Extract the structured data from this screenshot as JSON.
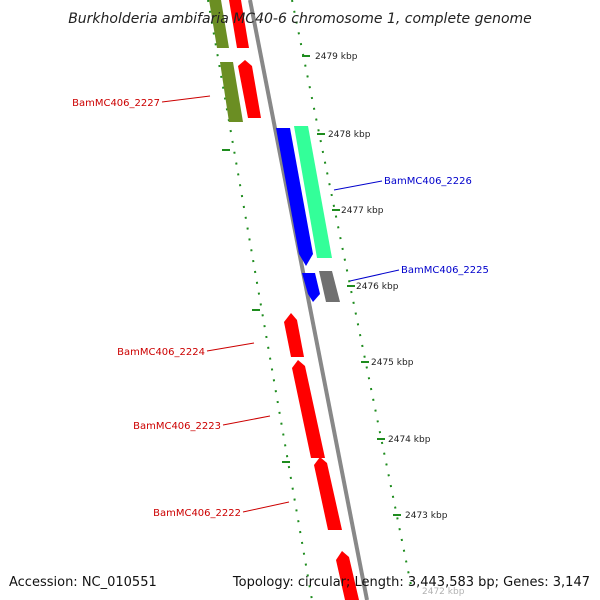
{
  "title": "Burkholderia ambifaria MC40-6 chromosome 1, complete genome",
  "footer": {
    "accession": "Accession: NC_010551",
    "summary": "Topology: circular; Length: 3,443,583 bp; Genes: 3,147"
  },
  "colors": {
    "backbone": "#888888",
    "tick": "#1e8c1e",
    "red": "#ff0000",
    "olive": "#6b8e23",
    "blue": "#0000ff",
    "aqua": "#33ff99",
    "gray": "#707070",
    "label_red": "#cc0000",
    "label_blue": "#0000cc"
  },
  "ticks": [
    {
      "label": "2479 kbp"
    },
    {
      "label": "2478 kbp"
    },
    {
      "label": "2477 kbp"
    },
    {
      "label": "2476 kbp"
    },
    {
      "label": "2475 kbp"
    },
    {
      "label": "2474 kbp"
    },
    {
      "label": "2473 kbp"
    },
    {
      "label": "2472 kbp"
    }
  ],
  "gene_labels": [
    {
      "text": "BamMC406_2227",
      "color": "label_red"
    },
    {
      "text": "BamMC406_2226",
      "color": "label_blue"
    },
    {
      "text": "BamMC406_2225",
      "color": "label_blue"
    },
    {
      "text": "BamMC406_2224",
      "color": "label_red"
    },
    {
      "text": "BamMC406_2223",
      "color": "label_red"
    },
    {
      "text": "BamMC406_2222",
      "color": "label_red"
    }
  ]
}
